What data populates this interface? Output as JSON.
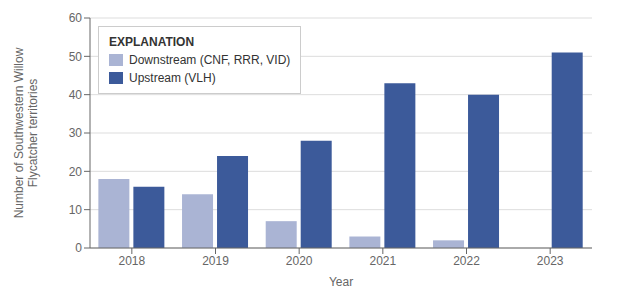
{
  "chart_data": {
    "type": "bar",
    "categories": [
      "2018",
      "2019",
      "2020",
      "2021",
      "2022",
      "2023"
    ],
    "series": [
      {
        "name": "Downstream (CNF, RRR, VID)",
        "color": "#aab4d4",
        "values": [
          18,
          14,
          7,
          3,
          2,
          0
        ]
      },
      {
        "name": "Upstream (VLH)",
        "color": "#3c5a9a",
        "values": [
          16,
          24,
          28,
          43,
          40,
          51
        ]
      }
    ],
    "x_label": "Year",
    "y_label": "Number of Southwestern Willow\nFlycatcher territories",
    "ylim": [
      0,
      60
    ],
    "yticks": [
      0,
      10,
      20,
      30,
      40,
      50,
      60
    ],
    "grid": true,
    "legend": "upper left",
    "legend_title": "EXPLANATION"
  }
}
